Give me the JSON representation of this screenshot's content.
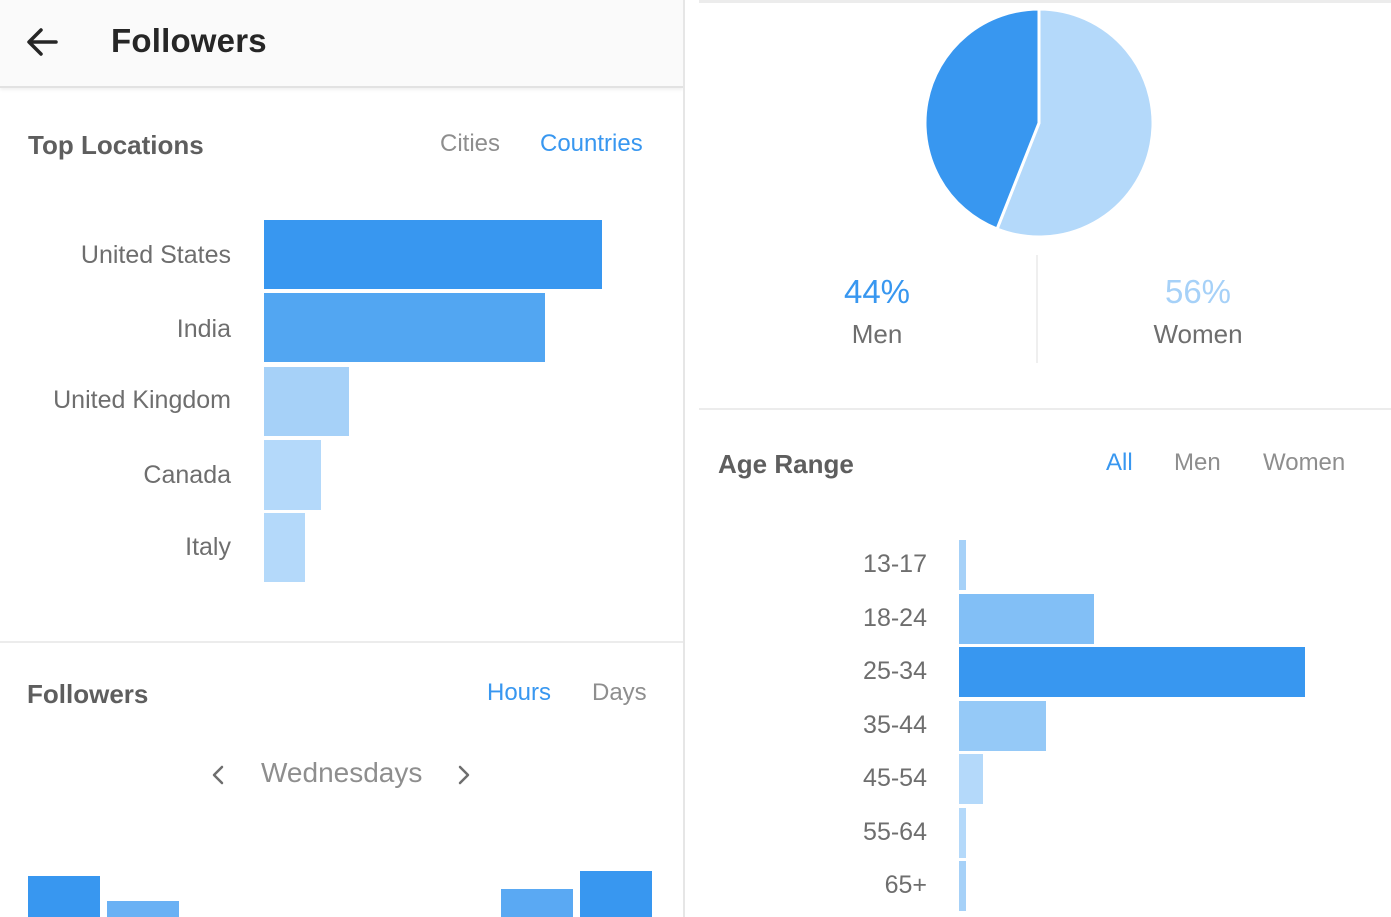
{
  "header": {
    "title": "Followers"
  },
  "top_locations": {
    "title": "Top Locations",
    "tabs": [
      {
        "label": "Cities",
        "active": false
      },
      {
        "label": "Countries",
        "active": true
      }
    ],
    "chart_data": {
      "type": "bar",
      "orientation": "horizontal",
      "categories": [
        "United States",
        "India",
        "United Kingdom",
        "Canada",
        "Italy"
      ],
      "values": [
        100,
        83,
        25,
        17,
        12
      ],
      "colors": [
        "#3897f0",
        "#52a6f2",
        "#a6d1f8",
        "#b4d9fa",
        "#b4d9fa"
      ]
    }
  },
  "followers_activity": {
    "title": "Followers",
    "tabs": [
      {
        "label": "Hours",
        "active": true
      },
      {
        "label": "Days",
        "active": false
      }
    ],
    "day_selector": {
      "label": "Wednesdays"
    },
    "chart_data": {
      "type": "bar",
      "partial": true,
      "values": [
        41,
        16,
        null,
        null,
        null,
        null,
        28,
        46
      ],
      "colors": [
        "#3897f0",
        "#6ab1f4",
        null,
        null,
        null,
        null,
        "#5aa9f3",
        "#3897f0"
      ]
    }
  },
  "gender": {
    "chart_data": {
      "type": "pie",
      "series": [
        {
          "name": "Men",
          "value": 44,
          "color": "#3897f0"
        },
        {
          "name": "Women",
          "value": 56,
          "color": "#b4d9fa"
        }
      ]
    },
    "men": {
      "percent": "44%",
      "label": "Men",
      "color": "#3897f0"
    },
    "women": {
      "percent": "56%",
      "label": "Women",
      "color": "#a6d1f8"
    }
  },
  "age_range": {
    "title": "Age Range",
    "tabs": [
      {
        "label": "All",
        "active": true
      },
      {
        "label": "Men",
        "active": false
      },
      {
        "label": "Women",
        "active": false
      }
    ],
    "chart_data": {
      "type": "bar",
      "orientation": "horizontal",
      "categories": [
        "13-17",
        "18-24",
        "25-34",
        "35-44",
        "45-54",
        "55-64",
        "65+"
      ],
      "values": [
        2,
        39,
        100,
        25,
        7,
        2,
        2
      ],
      "colors": [
        "#a6d1f8",
        "#82bff6",
        "#3897f0",
        "#95c9f7",
        "#b4d9fa",
        "#b4d9fa",
        "#a6d1f8"
      ]
    }
  }
}
